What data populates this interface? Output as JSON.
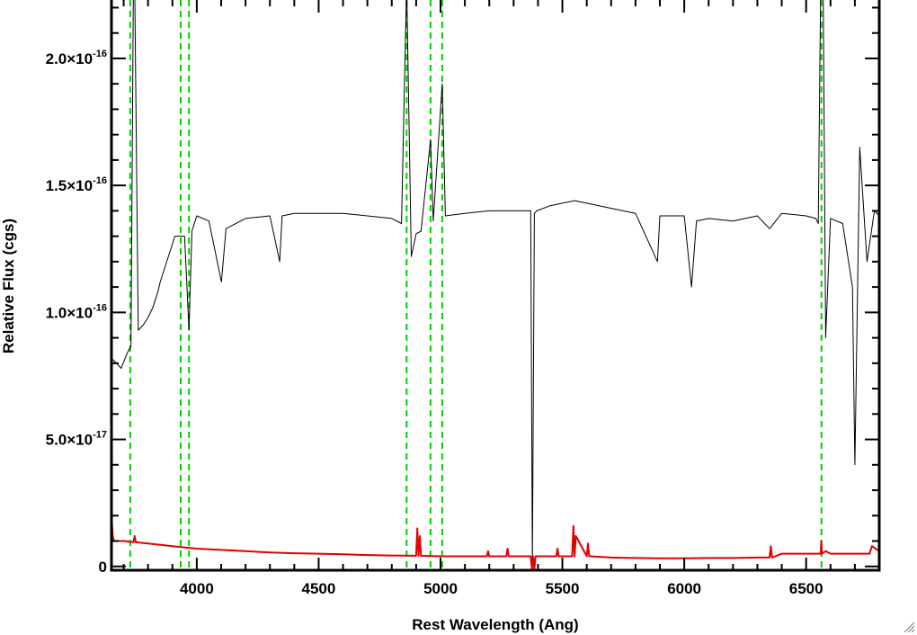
{
  "chart_data": {
    "type": "line",
    "title": "",
    "xlabel": "Rest Wavelength (Ang)",
    "ylabel": "Relative Flux (cgs)",
    "xlim": [
      3650,
      6800
    ],
    "ylim": [
      -1.5e-18,
      2.23e-16
    ],
    "x_ticks": [
      {
        "value": 4000,
        "label": "4000"
      },
      {
        "value": 4500,
        "label": "4500"
      },
      {
        "value": 5000,
        "label": "5000"
      },
      {
        "value": 5500,
        "label": "5500"
      },
      {
        "value": 6000,
        "label": "6000"
      },
      {
        "value": 6500,
        "label": "6500"
      }
    ],
    "y_ticks": [
      {
        "value": 0,
        "mantissa": "0",
        "exponent": ""
      },
      {
        "value": 5e-17,
        "mantissa": "5.0×10",
        "exponent": "-17"
      },
      {
        "value": 1e-16,
        "mantissa": "1.0×10",
        "exponent": "-16"
      },
      {
        "value": 1.5e-16,
        "mantissa": "1.5×10",
        "exponent": "-16"
      },
      {
        "value": 2e-16,
        "mantissa": "2.0×10",
        "exponent": "-16"
      }
    ],
    "grid": false,
    "series": [
      {
        "color": "#000000",
        "x": [
          3650,
          3670,
          3690,
          3710,
          3730,
          3740,
          3745,
          3760,
          3780,
          3800,
          3820,
          3840,
          3850,
          3870,
          3890,
          3910,
          3930,
          3950,
          3968,
          3980,
          4000,
          4050,
          4101,
          4120,
          4200,
          4300,
          4340,
          4350,
          4400,
          4500,
          4600,
          4700,
          4800,
          4840,
          4861,
          4880,
          4900,
          4920,
          4959,
          4970,
          5007,
          5020,
          5100,
          5200,
          5300,
          5370,
          5377,
          5385,
          5395,
          5450,
          5500,
          5550,
          5600,
          5700,
          5800,
          5890,
          5900,
          6000,
          6030,
          6050,
          6100,
          6200,
          6300,
          6350,
          6400,
          6500,
          6540,
          6550,
          6560,
          6570,
          6580,
          6600,
          6650,
          6690,
          6700,
          6720,
          6750,
          6780,
          6800
        ],
        "y": [
          8.2e-17,
          8e-17,
          7.8e-17,
          8.3e-17,
          8.7e-17,
          2.3e-16,
          2.3e-16,
          9.3e-17,
          9.5e-17,
          9.8e-17,
          1.02e-16,
          1.08e-16,
          1.12e-16,
          1.18e-16,
          1.24e-16,
          1.3e-16,
          1.3e-16,
          1.3e-16,
          9.3e-17,
          1.32e-16,
          1.38e-16,
          1.36e-16,
          1.12e-16,
          1.33e-16,
          1.37e-16,
          1.38e-16,
          1.2e-16,
          1.38e-16,
          1.39e-16,
          1.39e-16,
          1.39e-16,
          1.38e-16,
          1.37e-16,
          1.35e-16,
          2.3e-16,
          1.22e-16,
          1.31e-16,
          1.32e-16,
          1.68e-16,
          1.36e-16,
          1.9e-16,
          1.38e-16,
          1.39e-16,
          1.4e-16,
          1.4e-16,
          1.4e-16,
          2e-18,
          1.39e-16,
          1.4e-16,
          1.42e-16,
          1.43e-16,
          1.44e-16,
          1.43e-16,
          1.41e-16,
          1.39e-16,
          1.2e-16,
          1.38e-16,
          1.38e-16,
          1.1e-16,
          1.36e-16,
          1.37e-16,
          1.36e-16,
          1.38e-16,
          1.33e-16,
          1.39e-16,
          1.38e-16,
          1.37e-16,
          1.35e-16,
          2.3e-16,
          2.3e-16,
          9e-17,
          1.37e-16,
          1.35e-16,
          1.1e-16,
          4e-17,
          1.65e-16,
          1.2e-16,
          1.4e-16,
          1.38e-16
        ]
      },
      {
        "color": "#e00000",
        "x": [
          3650,
          3655,
          3660,
          3700,
          3740,
          3745,
          3750,
          3800,
          3900,
          4000,
          4100,
          4200,
          4300,
          4400,
          4500,
          4600,
          4700,
          4800,
          4900,
          4905,
          4910,
          4915,
          4920,
          5000,
          5100,
          5190,
          5195,
          5200,
          5270,
          5275,
          5280,
          5370,
          5375,
          5380,
          5385,
          5390,
          5400,
          5475,
          5480,
          5485,
          5540,
          5545,
          5550,
          5555,
          5600,
          5605,
          5610,
          5615,
          5700,
          5800,
          5900,
          6000,
          6100,
          6200,
          6300,
          6350,
          6355,
          6360,
          6400,
          6500,
          6560,
          6562,
          6565,
          6580,
          6600,
          6700,
          6760,
          6770,
          6800
        ],
        "y": [
          2e-17,
          1.2e-17,
          1e-17,
          1e-17,
          9.5e-18,
          1.2e-17,
          9.5e-18,
          9e-18,
          8e-18,
          7e-18,
          6.5e-18,
          6e-18,
          5.5e-18,
          5.2e-18,
          5e-18,
          4.8e-18,
          4.5e-18,
          4.3e-18,
          4.2e-18,
          1.5e-17,
          4.2e-18,
          1.2e-17,
          4.2e-18,
          4e-18,
          4e-18,
          4e-18,
          6e-18,
          4e-18,
          4e-18,
          7e-18,
          4e-18,
          4e-18,
          -1e-18,
          4e-18,
          -1e-18,
          4e-18,
          4e-18,
          4e-18,
          7e-18,
          4e-18,
          4e-18,
          1.6e-17,
          4e-18,
          1.2e-17,
          4e-18,
          9e-18,
          4e-18,
          4e-18,
          3.5e-18,
          3.3e-18,
          3.2e-18,
          3.2e-18,
          3.3e-18,
          3.3e-18,
          3.5e-18,
          3.5e-18,
          8e-18,
          3.5e-18,
          5e-18,
          5e-18,
          5e-18,
          1e-17,
          5e-18,
          6e-18,
          5e-18,
          5e-18,
          5e-18,
          8e-18,
          6e-18
        ]
      }
    ],
    "reference_lines": {
      "color": "#00d000",
      "style": "dashed",
      "x": [
        3727,
        3934,
        3968,
        4861,
        4959,
        5007,
        6563
      ]
    }
  }
}
